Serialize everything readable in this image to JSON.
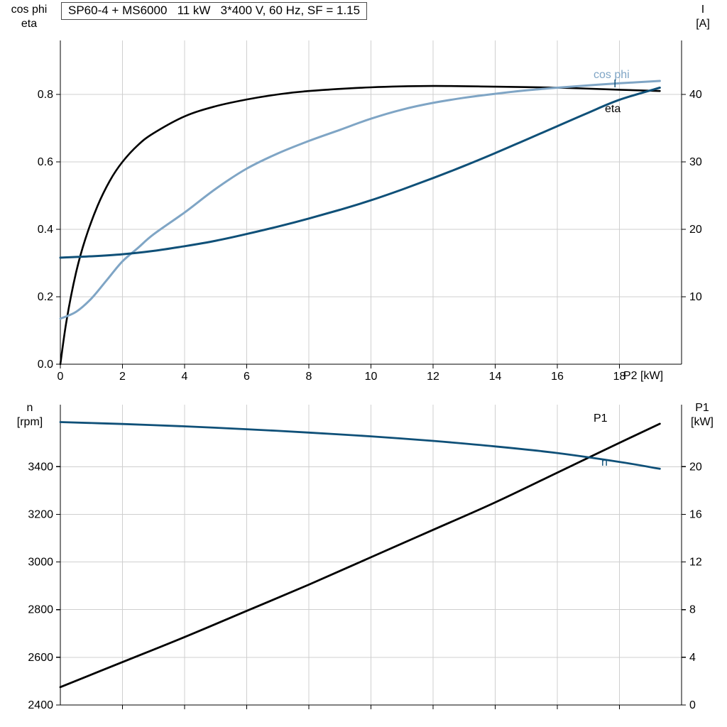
{
  "colors": {
    "background": "#ffffff",
    "grid": "#cfcfcf",
    "axis": "#000000",
    "light_blue": "#7fa5c5",
    "dark_blue": "#0f5078",
    "black": "#000000"
  },
  "chart_data": [
    {
      "type": "line",
      "title": "SP60-4 + MS6000   11 kW   3*400 V, 60 Hz, SF = 1.15",
      "x_axis": {
        "label": "P2 [kW]",
        "min": 0,
        "max": 20,
        "tick_values": [
          0,
          2,
          4,
          6,
          8,
          10,
          12,
          14,
          16,
          18
        ],
        "tick_labels": [
          "0",
          "2",
          "4",
          "6",
          "8",
          "10",
          "12",
          "14",
          "16",
          "18"
        ],
        "grid": true
      },
      "y_left": {
        "label_lines": [
          "cos phi",
          "eta"
        ],
        "min": 0,
        "max": 0.96,
        "tick_values": [
          0,
          0.2,
          0.4,
          0.6,
          0.8
        ],
        "tick_labels": [
          "0.0",
          "0.2",
          "0.4",
          "0.6",
          "0.8"
        ],
        "grid": true
      },
      "y_right": {
        "label_lines": [
          "I",
          "[A]"
        ],
        "min": 0,
        "max": 48,
        "tick_values": [
          10,
          20,
          30,
          40
        ],
        "tick_labels": [
          "10",
          "20",
          "30",
          "40"
        ]
      },
      "series": [
        {
          "name": "eta",
          "axis": "left",
          "color": "#000000",
          "width": 2.6,
          "x": [
            0,
            0.2,
            0.5,
            0.8,
            1.2,
            1.6,
            2,
            2.5,
            3,
            4,
            5,
            6,
            7,
            8,
            10,
            12,
            14,
            16,
            18,
            19.3
          ],
          "y": [
            0,
            0.13,
            0.27,
            0.37,
            0.47,
            0.545,
            0.6,
            0.65,
            0.685,
            0.735,
            0.765,
            0.785,
            0.8,
            0.81,
            0.821,
            0.825,
            0.823,
            0.82,
            0.814,
            0.81
          ]
        },
        {
          "name": "cos phi",
          "axis": "left",
          "color": "#7fa5c5",
          "width": 3,
          "x": [
            0,
            0.5,
            1,
            1.5,
            2,
            2.5,
            3,
            4,
            5,
            6,
            7,
            8,
            9,
            10,
            11,
            12,
            13,
            14,
            15,
            16,
            17,
            18,
            19.3
          ],
          "y": [
            0.135,
            0.155,
            0.195,
            0.25,
            0.305,
            0.345,
            0.385,
            0.45,
            0.52,
            0.58,
            0.625,
            0.662,
            0.695,
            0.728,
            0.755,
            0.775,
            0.79,
            0.802,
            0.812,
            0.82,
            0.827,
            0.833,
            0.84
          ]
        },
        {
          "name": "I",
          "axis": "right",
          "color": "#0f5078",
          "width": 3,
          "x": [
            0,
            1,
            2,
            3,
            4,
            5,
            6,
            7,
            8,
            9,
            10,
            11,
            12,
            13,
            14,
            15,
            16,
            17,
            18,
            19.3
          ],
          "y": [
            15.8,
            16.0,
            16.3,
            16.8,
            17.5,
            18.3,
            19.3,
            20.4,
            21.6,
            22.9,
            24.3,
            25.9,
            27.6,
            29.4,
            31.3,
            33.3,
            35.3,
            37.3,
            39.2,
            41.0
          ]
        }
      ]
    },
    {
      "type": "line",
      "title": "",
      "x_axis": {
        "label": "",
        "min": 0,
        "max": 20,
        "tick_values": [
          2,
          4,
          6,
          8,
          10,
          12,
          14,
          16,
          18
        ],
        "tick_labels": [],
        "grid": true
      },
      "y_left": {
        "label_lines": [
          "n",
          "[rpm]"
        ],
        "min": 2400,
        "max": 3660,
        "tick_values": [
          2400,
          2600,
          2800,
          3000,
          3200,
          3400
        ],
        "tick_labels": [
          "2400",
          "2600",
          "2800",
          "3000",
          "3200",
          "3400"
        ],
        "grid": true
      },
      "y_right": {
        "label_lines": [
          "P1",
          "[kW]"
        ],
        "min": 0,
        "max": 25.2,
        "tick_values": [
          0,
          4,
          8,
          12,
          16,
          20
        ],
        "tick_labels": [
          "0",
          "4",
          "8",
          "12",
          "16",
          "20"
        ]
      },
      "series": [
        {
          "name": "P1",
          "axis": "right",
          "color": "#000000",
          "width": 2.8,
          "x": [
            0,
            2,
            4,
            6,
            8,
            10,
            12,
            14,
            16,
            18,
            19.3
          ],
          "y": [
            1.5,
            3.6,
            5.7,
            7.9,
            10.1,
            12.4,
            14.7,
            17.0,
            19.5,
            22.0,
            23.6
          ]
        },
        {
          "name": "n",
          "axis": "left",
          "color": "#0f5078",
          "width": 2.8,
          "x": [
            0,
            2,
            4,
            6,
            8,
            10,
            12,
            14,
            16,
            18,
            19.3
          ],
          "y": [
            3587,
            3579,
            3569,
            3557,
            3543,
            3527,
            3508,
            3485,
            3457,
            3420,
            3391
          ]
        }
      ]
    }
  ]
}
